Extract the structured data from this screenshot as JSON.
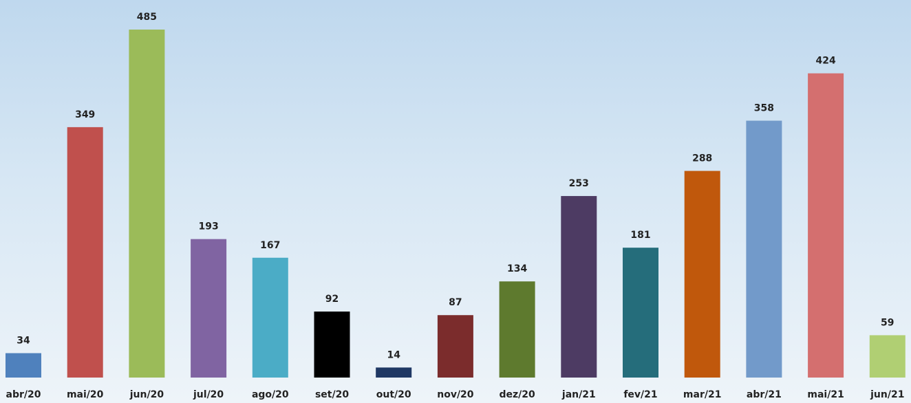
{
  "chart_data": {
    "type": "bar",
    "categories": [
      "abr/20",
      "mai/20",
      "jun/20",
      "jul/20",
      "ago/20",
      "set/20",
      "out/20",
      "nov/20",
      "dez/20",
      "jan/21",
      "fev/21",
      "mar/21",
      "abr/21",
      "mai/21",
      "jun/21"
    ],
    "values": [
      34,
      349,
      485,
      193,
      167,
      92,
      14,
      87,
      134,
      253,
      181,
      288,
      358,
      424,
      59
    ],
    "colors": [
      "#4f81bd",
      "#c0504d",
      "#9bbb59",
      "#8064a2",
      "#4bacc6",
      "#000000",
      "#1f3864",
      "#7b2c2c",
      "#5e7a2e",
      "#4d3b63",
      "#256d7b",
      "#c0580c",
      "#729aca",
      "#d46f6f",
      "#b0cf73"
    ]
  }
}
